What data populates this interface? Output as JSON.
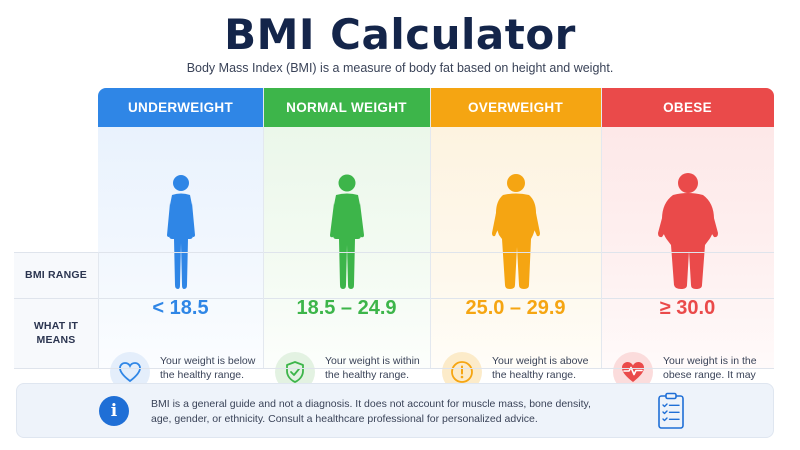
{
  "header": {
    "title": "BMI Calculator",
    "subtitle": "Body Mass Index (BMI) is a measure of body fat based on height and weight."
  },
  "row_labels": {
    "bmi_range": "BMI RANGE",
    "what_it_means_line1": "WHAT IT",
    "what_it_means_line2": "MEANS"
  },
  "categories": [
    {
      "name": "UNDERWEIGHT",
      "range": "< 18.5",
      "meaning": "Your weight is below the healthy range.",
      "icon": "heart-icon",
      "color": "#2f86e6"
    },
    {
      "name": "NORMAL WEIGHT",
      "range": "18.5 – 24.9",
      "meaning": "Your weight is within the healthy range.",
      "icon": "shield-check-icon",
      "color": "#3db54a"
    },
    {
      "name": "OVERWEIGHT",
      "range": "25.0 – 29.9",
      "meaning": "Your weight is above the healthy range.",
      "icon": "exclamation-icon",
      "color": "#f5a512"
    },
    {
      "name": "OBESE",
      "range": "≥ 30.0",
      "meaning": "Your weight is in the obese range. It may increase health risks.",
      "icon": "heartbeat-icon",
      "color": "#ea4a4a"
    }
  ],
  "note": {
    "icon": "info-icon",
    "icon_glyph": "i",
    "text": "BMI is a general guide and not a diagnosis. It does not account for muscle mass, bone density, age, gender, or ethnicity. Consult a healthcare professional for personalized advice.",
    "side_icon": "clipboard-checklist-icon"
  }
}
